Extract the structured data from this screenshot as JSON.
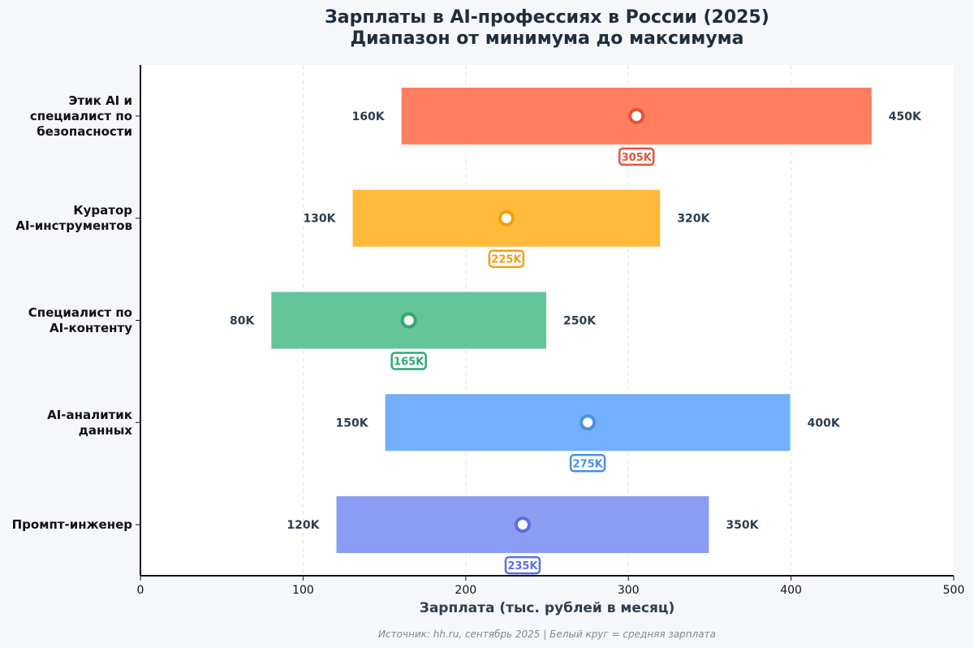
{
  "chart_data": {
    "type": "bar",
    "orientation": "horizontal-range",
    "title_line1": "Зарплаты в AI-профессиях в России (2025)",
    "title_line2": "Диапазон от минимума до максимума",
    "xlabel": "Зарплата (тыс. рублей в месяц)",
    "xlim": [
      0,
      500
    ],
    "xticks": [
      0,
      100,
      200,
      300,
      400,
      500
    ],
    "grid": "vertical dashed",
    "source": "Источник: hh.ru, сентябрь 2025 | Белый круг = средняя зарплата",
    "categories": [
      {
        "name_lines": [
          "Этик AI и",
          "специалист по",
          "безопасности"
        ],
        "min": 160,
        "max": 450,
        "mean": 305,
        "min_label": "160K",
        "max_label": "450K",
        "mean_label": "305K",
        "color": "#ff6b4a",
        "dark": "#e8523a"
      },
      {
        "name_lines": [
          "Куратор",
          "AI-инструментов"
        ],
        "min": 130,
        "max": 320,
        "mean": 225,
        "min_label": "130K",
        "max_label": "320K",
        "mean_label": "225K",
        "color": "#ffb020",
        "dark": "#f0a010"
      },
      {
        "name_lines": [
          "Специалист по",
          "AI-контенту"
        ],
        "min": 80,
        "max": 250,
        "mean": 165,
        "min_label": "80K",
        "max_label": "250K",
        "mean_label": "165K",
        "color": "#4dbd8a",
        "dark": "#2fa870"
      },
      {
        "name_lines": [
          "AI-аналитик",
          "данных"
        ],
        "min": 150,
        "max": 400,
        "mean": 275,
        "min_label": "150K",
        "max_label": "400K",
        "mean_label": "275K",
        "color": "#60a5fa",
        "dark": "#4a90e2"
      },
      {
        "name_lines": [
          "Промпт-инженер"
        ],
        "min": 120,
        "max": 350,
        "mean": 235,
        "min_label": "120K",
        "max_label": "350K",
        "mean_label": "235K",
        "color": "#7b8ff0",
        "dark": "#5a6fe0"
      }
    ]
  }
}
